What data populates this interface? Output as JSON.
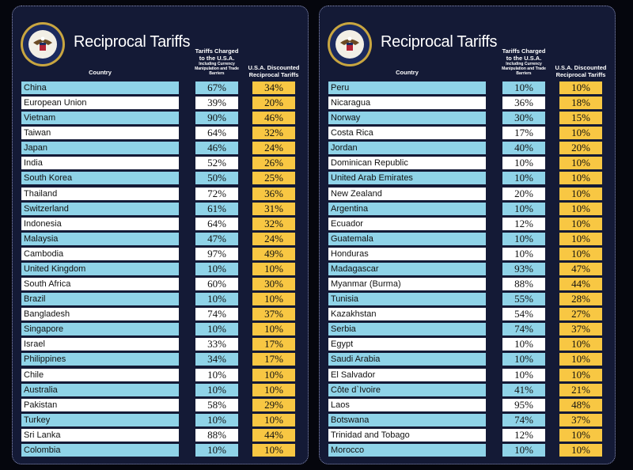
{
  "panels": [
    {
      "title": "Reciprocal Tariffs",
      "headers": {
        "country": "Country",
        "charged": "Tariffs Charged to the U.S.A.",
        "charged_note": "Including Currency Manipulation and Trade Barriers",
        "discounted": "U.S.A. Discounted Reciprocal Tariffs"
      },
      "rows": [
        [
          "China",
          "67%",
          "34%"
        ],
        [
          "European Union",
          "39%",
          "20%"
        ],
        [
          "Vietnam",
          "90%",
          "46%"
        ],
        [
          "Taiwan",
          "64%",
          "32%"
        ],
        [
          "Japan",
          "46%",
          "24%"
        ],
        [
          "India",
          "52%",
          "26%"
        ],
        [
          "South Korea",
          "50%",
          "25%"
        ],
        [
          "Thailand",
          "72%",
          "36%"
        ],
        [
          "Switzerland",
          "61%",
          "31%"
        ],
        [
          "Indonesia",
          "64%",
          "32%"
        ],
        [
          "Malaysia",
          "47%",
          "24%"
        ],
        [
          "Cambodia",
          "97%",
          "49%"
        ],
        [
          "United Kingdom",
          "10%",
          "10%"
        ],
        [
          "South Africa",
          "60%",
          "30%"
        ],
        [
          "Brazil",
          "10%",
          "10%"
        ],
        [
          "Bangladesh",
          "74%",
          "37%"
        ],
        [
          "Singapore",
          "10%",
          "10%"
        ],
        [
          "Israel",
          "33%",
          "17%"
        ],
        [
          "Philippines",
          "34%",
          "17%"
        ],
        [
          "Chile",
          "10%",
          "10%"
        ],
        [
          "Australia",
          "10%",
          "10%"
        ],
        [
          "Pakistan",
          "58%",
          "29%"
        ],
        [
          "Turkey",
          "10%",
          "10%"
        ],
        [
          "Sri Lanka",
          "88%",
          "44%"
        ],
        [
          "Colombia",
          "10%",
          "10%"
        ]
      ]
    },
    {
      "title": "Reciprocal Tariffs",
      "headers": {
        "country": "Country",
        "charged": "Tariffs Charged to the U.S.A.",
        "charged_note": "Including Currency Manipulation and Trade Barriers",
        "discounted": "U.S.A. Discounted Reciprocal Tariffs"
      },
      "rows": [
        [
          "Peru",
          "10%",
          "10%"
        ],
        [
          "Nicaragua",
          "36%",
          "18%"
        ],
        [
          "Norway",
          "30%",
          "15%"
        ],
        [
          "Costa Rica",
          "17%",
          "10%"
        ],
        [
          "Jordan",
          "40%",
          "20%"
        ],
        [
          "Dominican Republic",
          "10%",
          "10%"
        ],
        [
          "United Arab Emirates",
          "10%",
          "10%"
        ],
        [
          "New Zealand",
          "20%",
          "10%"
        ],
        [
          "Argentina",
          "10%",
          "10%"
        ],
        [
          "Ecuador",
          "12%",
          "10%"
        ],
        [
          "Guatemala",
          "10%",
          "10%"
        ],
        [
          "Honduras",
          "10%",
          "10%"
        ],
        [
          "Madagascar",
          "93%",
          "47%"
        ],
        [
          "Myanmar (Burma)",
          "88%",
          "44%"
        ],
        [
          "Tunisia",
          "55%",
          "28%"
        ],
        [
          "Kazakhstan",
          "54%",
          "27%"
        ],
        [
          "Serbia",
          "74%",
          "37%"
        ],
        [
          "Egypt",
          "10%",
          "10%"
        ],
        [
          "Saudi Arabia",
          "10%",
          "10%"
        ],
        [
          "El Salvador",
          "10%",
          "10%"
        ],
        [
          "Côte d`Ivoire",
          "41%",
          "21%"
        ],
        [
          "Laos",
          "95%",
          "48%"
        ],
        [
          "Botswana",
          "74%",
          "37%"
        ],
        [
          "Trinidad and Tobago",
          "12%",
          "10%"
        ],
        [
          "Morocco",
          "10%",
          "10%"
        ]
      ]
    }
  ]
}
